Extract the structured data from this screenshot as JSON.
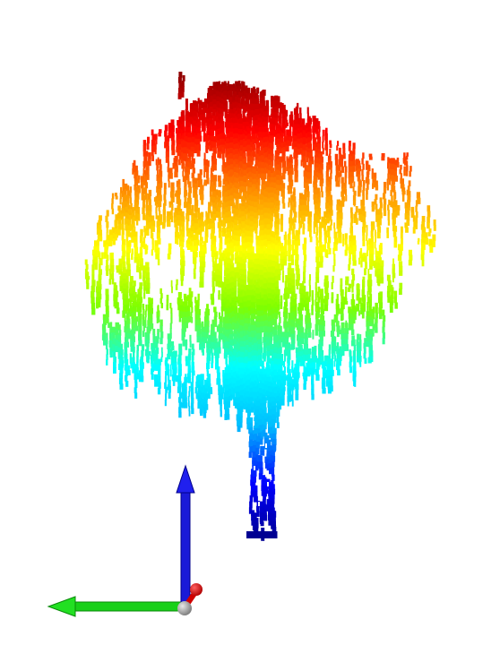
{
  "viewer": {
    "background_color": "#ffffff",
    "colormap": "jet",
    "colormap_stops": [
      "#00008b",
      "#0000ff",
      "#00bfff",
      "#00ffff",
      "#7fff00",
      "#ffff00",
      "#ff8c00",
      "#ff0000",
      "#8b0000"
    ],
    "point_cloud": {
      "subject": "tree",
      "color_by": "height"
    },
    "axes_gizmo": {
      "x_axis_color": "#ff0000",
      "y_axis_color": "#00ff00",
      "z_axis_color": "#0000ff",
      "origin_color": "#a0a0a0"
    }
  }
}
